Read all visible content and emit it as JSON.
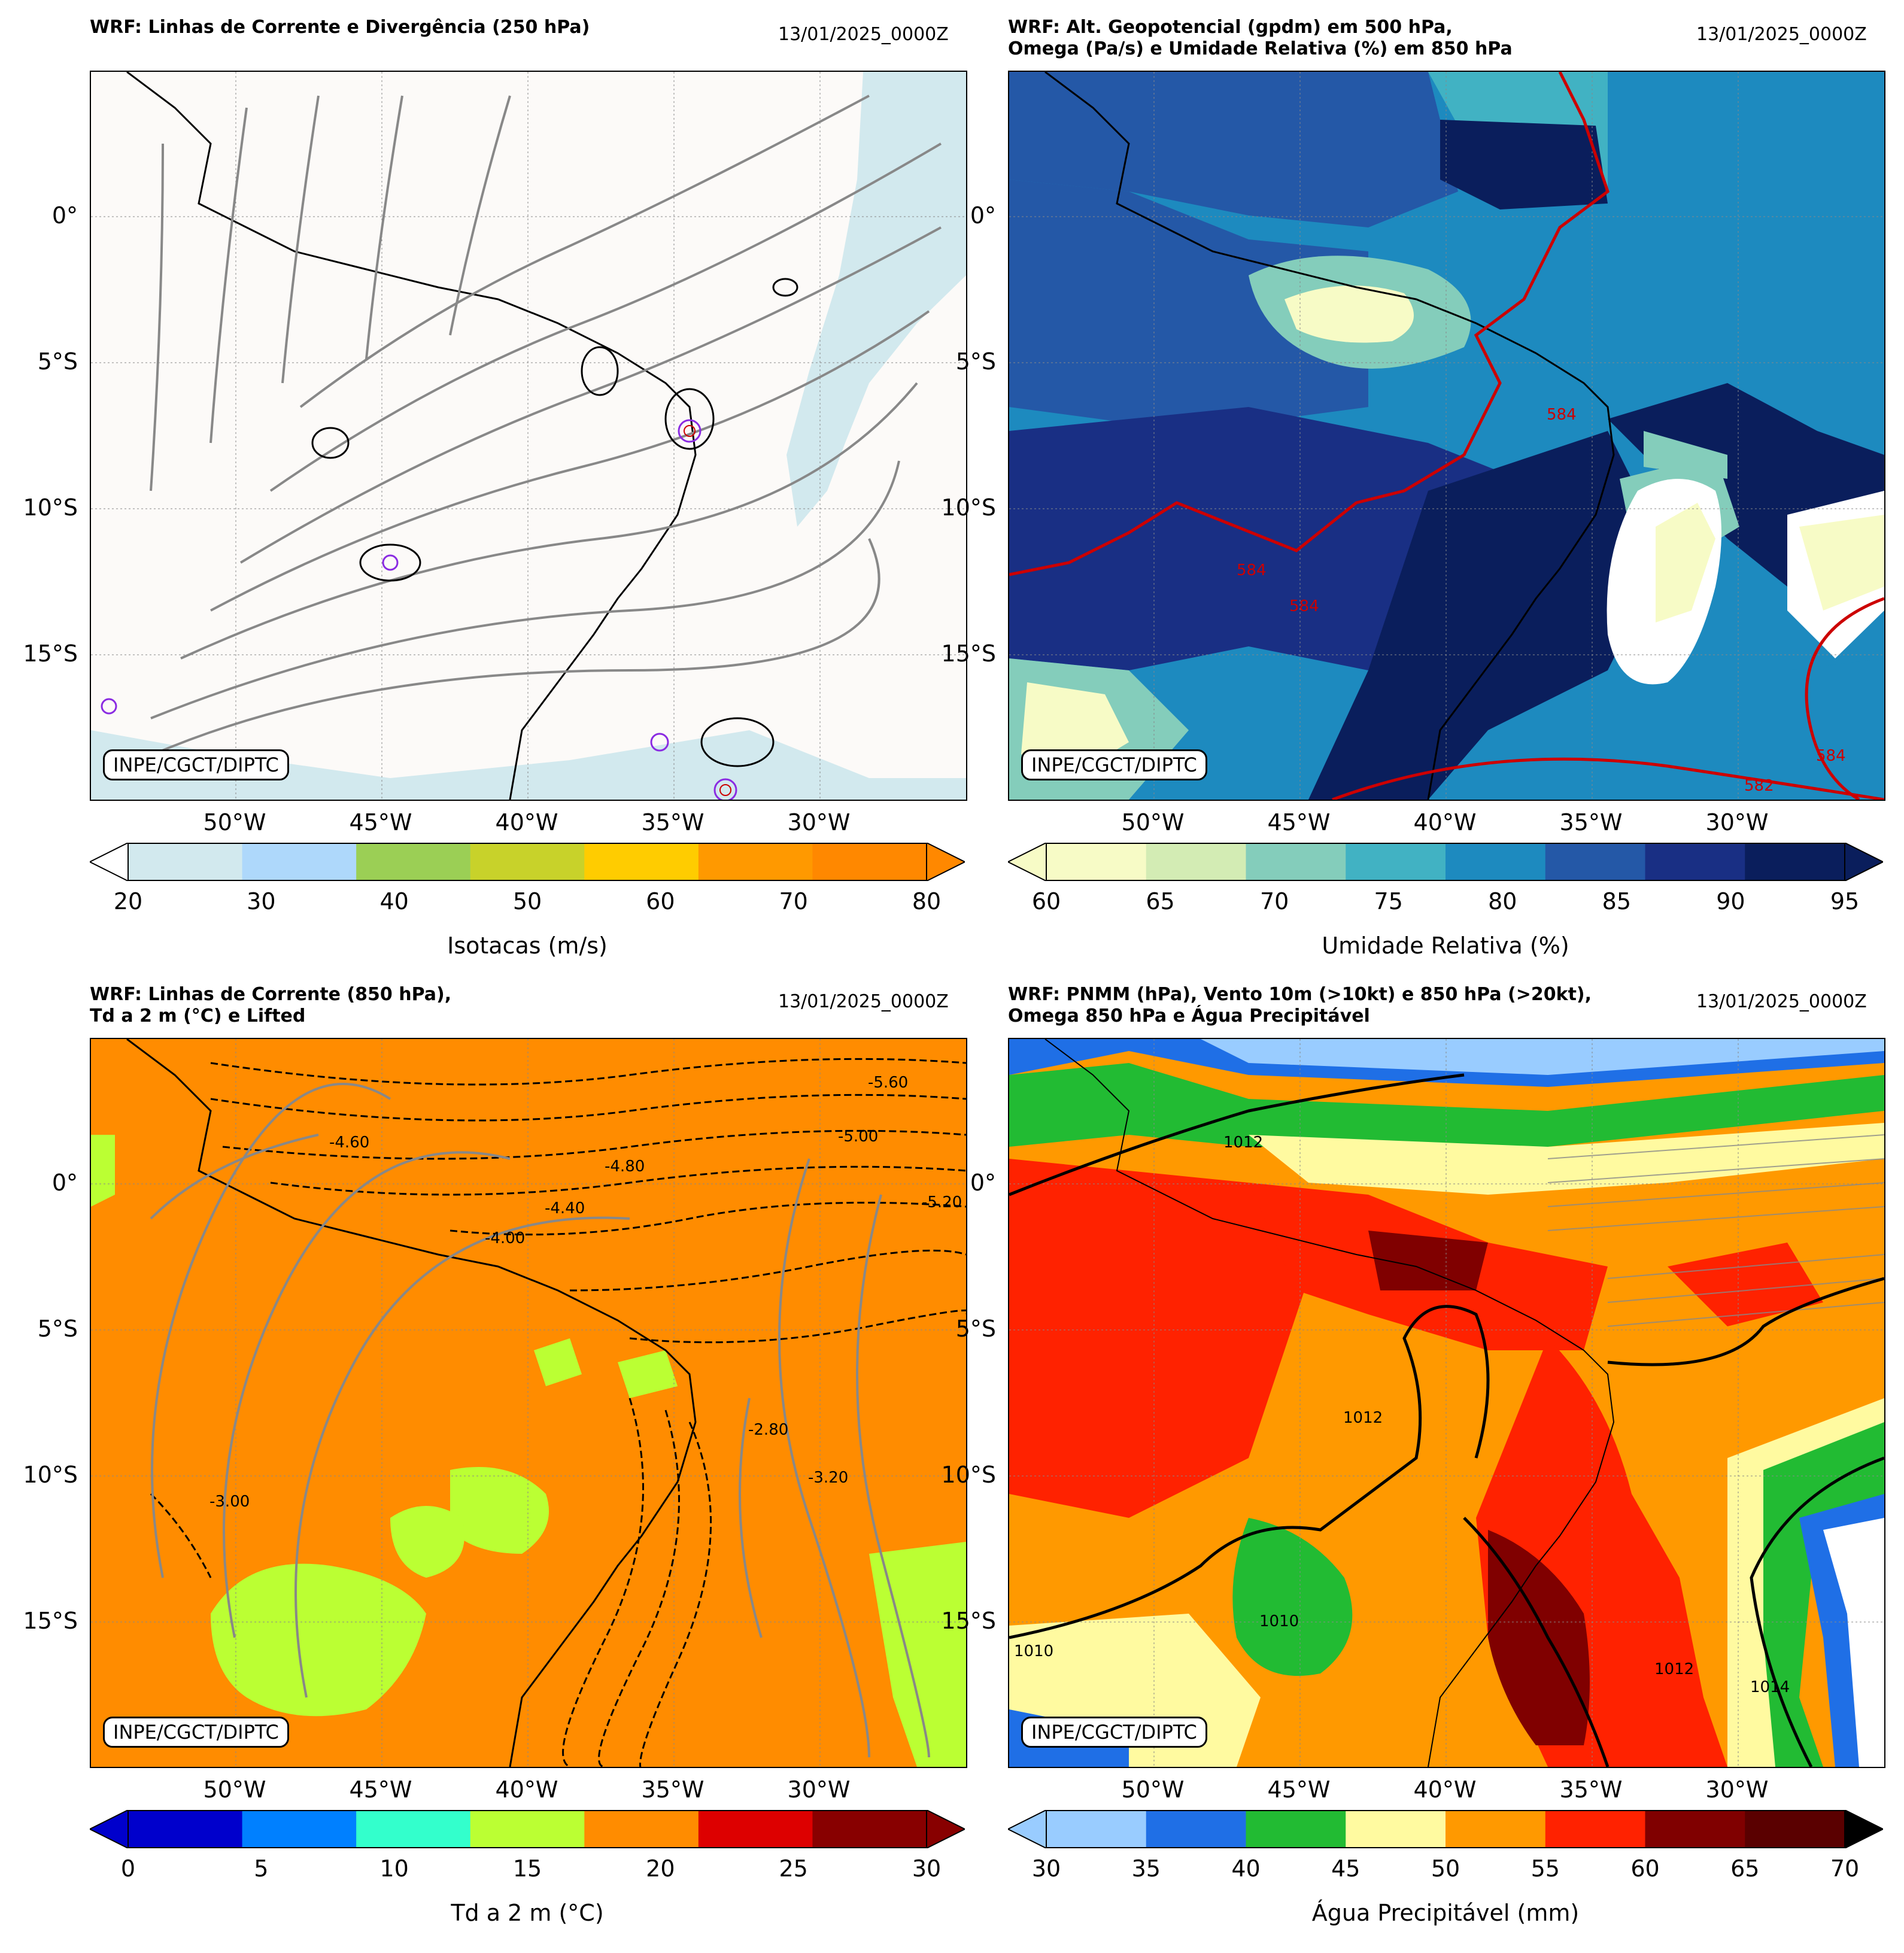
{
  "panels": {
    "p1": {
      "title": "WRF: Linhas de Corrente e Divergência (250 hPa)",
      "date": "13/01/2025_0000Z",
      "badge": "INPE/CGCT/DIPTC",
      "colorbar": {
        "title": "Isotacas (m/s)",
        "ticks": [
          "20",
          "30",
          "40",
          "50",
          "60",
          "70",
          "80"
        ],
        "colors": [
          "#d2e9ee",
          "#aed8fb",
          "#9bcf55",
          "#c8d22a",
          "#ffcc00",
          "#ff9900",
          "#ff8800"
        ]
      }
    },
    "p2": {
      "title": "WRF: Alt. Geopotencial (gpdm) em 500 hPa,\nOmega (Pa/s) e Umidade Relativa (%) em 850 hPa",
      "date": "13/01/2025_0000Z",
      "badge": "INPE/CGCT/DIPTC",
      "contour_labels": [
        "584",
        "584",
        "582",
        "584",
        "584"
      ],
      "colorbar": {
        "title": "Umidade Relativa (%)",
        "ticks": [
          "60",
          "65",
          "70",
          "75",
          "80",
          "85",
          "90",
          "95"
        ],
        "colors": [
          "#f7fbc6",
          "#d3ecb4",
          "#84cdbb",
          "#41b2c3",
          "#1d8abf",
          "#2458a7",
          "#192f84",
          "#0a1e5c"
        ]
      }
    },
    "p3": {
      "title": "WRF: Linhas de Corrente (850 hPa),\nTd a 2 m (°C) e Lifted",
      "date": "13/01/2025_0000Z",
      "badge": "INPE/CGCT/DIPTC",
      "contour_labels": [
        "-4.60",
        "-4.80",
        "-5.00",
        "-5.20",
        "-4.40",
        "-4.00",
        "-3.00",
        "-2.80",
        "-5.60",
        "-3.20"
      ],
      "colorbar": {
        "title": "Td a 2 m (°C)",
        "ticks": [
          "0",
          "5",
          "10",
          "15",
          "20",
          "25",
          "30"
        ],
        "colors": [
          "#0000cc",
          "#0080ff",
          "#33ffcc",
          "#bbff33",
          "#ff8c00",
          "#dd0000",
          "#880000"
        ]
      }
    },
    "p4": {
      "title": "WRF: PNMM (hPa), Vento 10m (>10kt) e 850 hPa (>20kt),\nOmega 850 hPa e Água Precipitável",
      "date": "13/01/2025_0000Z",
      "badge": "INPE/CGCT/DIPTC",
      "contour_labels": [
        "1012",
        "1012",
        "1010",
        "1010",
        "1012",
        "1014"
      ],
      "colorbar": {
        "title": "Água Precipitável (mm)",
        "ticks": [
          "30",
          "35",
          "40",
          "45",
          "50",
          "55",
          "60",
          "65",
          "70"
        ],
        "colors": [
          "#99ccff",
          "#1f6fe6",
          "#22bb33",
          "#fffaa0",
          "#ff9900",
          "#ff2200",
          "#800000",
          "#5a0000"
        ]
      }
    }
  },
  "axes": {
    "lat_labels": [
      "0°",
      "5°S",
      "10°S",
      "15°S"
    ],
    "lon_labels": [
      "50°W",
      "45°W",
      "40°W",
      "35°W",
      "30°W"
    ]
  }
}
